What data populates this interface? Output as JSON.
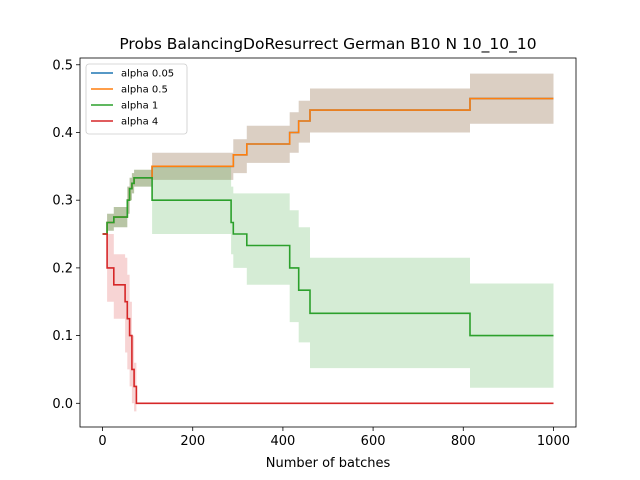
{
  "chart_data": {
    "type": "line",
    "title": "Probs BalancingDoResurrect German B10 N 10_10_10",
    "xlabel": "Number of batches",
    "ylabel": "",
    "xlim": [
      -50,
      1050
    ],
    "ylim": [
      -0.035,
      0.51
    ],
    "xticks": [
      0,
      200,
      400,
      600,
      800,
      1000
    ],
    "xtick_labels": [
      "0",
      "200",
      "400",
      "600",
      "800",
      "1000"
    ],
    "yticks": [
      0.0,
      0.1,
      0.2,
      0.3,
      0.4,
      0.5
    ],
    "ytick_labels": [
      "0.0",
      "0.1",
      "0.2",
      "0.3",
      "0.4",
      "0.5"
    ],
    "grid": false,
    "legend_position": "top-left",
    "series": [
      {
        "name": "alpha 0.05",
        "color": "#1f77b4",
        "step": true,
        "x": [
          0,
          5,
          10,
          25,
          55,
          60,
          65,
          70,
          110,
          285,
          290,
          320,
          395,
          415,
          435,
          460,
          815,
          1000
        ],
        "y": [
          0.25,
          0.25,
          0.267,
          0.275,
          0.3,
          0.317,
          0.325,
          0.333,
          0.35,
          0.35,
          0.367,
          0.383,
          0.383,
          0.4,
          0.417,
          0.433,
          0.45,
          0.45
        ],
        "band_lower": [
          0.25,
          0.25,
          0.255,
          0.26,
          0.28,
          0.3,
          0.31,
          0.32,
          0.33,
          0.33,
          0.34,
          0.355,
          0.355,
          0.37,
          0.385,
          0.4,
          0.413,
          0.413
        ],
        "band_upper": [
          0.25,
          0.25,
          0.28,
          0.29,
          0.32,
          0.333,
          0.34,
          0.345,
          0.37,
          0.37,
          0.39,
          0.41,
          0.41,
          0.43,
          0.447,
          0.465,
          0.487,
          0.487
        ]
      },
      {
        "name": "alpha 0.5",
        "color": "#ff7f0e",
        "step": true,
        "x": [
          0,
          5,
          10,
          25,
          55,
          60,
          65,
          70,
          110,
          285,
          290,
          320,
          395,
          415,
          435,
          460,
          815,
          1000
        ],
        "y": [
          0.25,
          0.25,
          0.267,
          0.275,
          0.3,
          0.317,
          0.325,
          0.333,
          0.35,
          0.35,
          0.367,
          0.383,
          0.383,
          0.4,
          0.417,
          0.433,
          0.45,
          0.45
        ],
        "band_lower": [
          0.25,
          0.25,
          0.255,
          0.26,
          0.28,
          0.3,
          0.31,
          0.32,
          0.33,
          0.33,
          0.34,
          0.355,
          0.355,
          0.37,
          0.385,
          0.4,
          0.413,
          0.413
        ],
        "band_upper": [
          0.25,
          0.25,
          0.28,
          0.29,
          0.32,
          0.333,
          0.34,
          0.345,
          0.37,
          0.37,
          0.39,
          0.41,
          0.41,
          0.43,
          0.447,
          0.465,
          0.487,
          0.487
        ]
      },
      {
        "name": "alpha 1",
        "color": "#2ca02c",
        "step": true,
        "x": [
          0,
          5,
          10,
          25,
          55,
          60,
          65,
          70,
          110,
          285,
          290,
          320,
          415,
          435,
          460,
          815,
          1000
        ],
        "y": [
          0.25,
          0.25,
          0.267,
          0.275,
          0.3,
          0.317,
          0.325,
          0.333,
          0.3,
          0.267,
          0.25,
          0.233,
          0.2,
          0.167,
          0.133,
          0.1,
          0.1
        ],
        "band_lower": [
          0.25,
          0.25,
          0.255,
          0.26,
          0.28,
          0.3,
          0.31,
          0.32,
          0.25,
          0.22,
          0.2,
          0.175,
          0.12,
          0.09,
          0.052,
          0.023,
          0.023
        ],
        "band_upper": [
          0.25,
          0.25,
          0.28,
          0.29,
          0.32,
          0.333,
          0.34,
          0.345,
          0.35,
          0.32,
          0.31,
          0.31,
          0.285,
          0.26,
          0.215,
          0.177,
          0.177
        ]
      },
      {
        "name": "alpha 4",
        "color": "#d62728",
        "step": true,
        "x": [
          0,
          5,
          10,
          25,
          50,
          55,
          60,
          65,
          70,
          75,
          1000
        ],
        "y": [
          0.25,
          0.25,
          0.2,
          0.175,
          0.15,
          0.125,
          0.1,
          0.05,
          0.025,
          0.0,
          0.0
        ],
        "band_lower": [
          0.25,
          0.25,
          0.15,
          0.125,
          0.075,
          0.05,
          0.025,
          0.0,
          -0.012,
          0.0,
          0.0
        ],
        "band_upper": [
          0.25,
          0.25,
          0.25,
          0.22,
          0.215,
          0.19,
          0.15,
          0.1,
          0.06,
          0.0,
          0.0
        ]
      }
    ]
  }
}
